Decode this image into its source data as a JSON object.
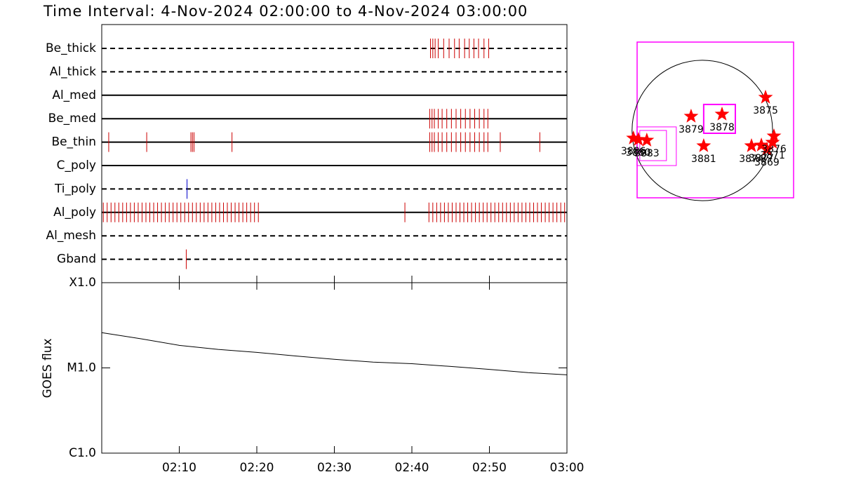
{
  "chart_data": [
    {
      "type": "event",
      "title": "Time Interval:  4-Nov-2024 02:00:00 to  4-Nov-2024 03:00:00",
      "xlim": [
        0,
        60
      ],
      "series": [
        {
          "name": "Be_thick",
          "color": "#cc0000",
          "style": "dashed",
          "values": [
            42.4,
            42.7,
            43.0,
            43.4,
            44.1,
            44.8,
            45.5,
            46.1,
            46.8,
            47.4,
            48.0,
            48.6,
            49.3,
            49.9
          ]
        },
        {
          "name": "Al_thick",
          "color": "#cc0000",
          "style": "dashed",
          "values": []
        },
        {
          "name": "Al_med",
          "color": "#cc0000",
          "style": "solid",
          "values": []
        },
        {
          "name": "Be_med",
          "color": "#cc0000",
          "style": "solid",
          "values": [
            42.3,
            42.6,
            42.9,
            43.4,
            43.9,
            44.5,
            45.1,
            45.7,
            46.3,
            46.9,
            47.5,
            48.1,
            48.7,
            49.3,
            49.8
          ]
        },
        {
          "name": "Be_thin",
          "color": "#cc0000",
          "style": "solid",
          "values": [
            0.9,
            5.8,
            11.5,
            11.7,
            11.9,
            16.8,
            42.3,
            42.6,
            42.9,
            43.4,
            43.9,
            44.5,
            45.1,
            45.7,
            46.3,
            46.9,
            47.5,
            48.1,
            48.7,
            49.3,
            49.8,
            51.4,
            56.5
          ]
        },
        {
          "name": "C_poly",
          "color": "#cc0000",
          "style": "solid",
          "values": []
        },
        {
          "name": "Ti_poly",
          "color": "#0000cc",
          "style": "dashed",
          "values": [
            11.0
          ]
        },
        {
          "name": "Al_poly",
          "color": "#cc0000",
          "style": "solid",
          "values": [
            0.2,
            0.7,
            1.2,
            1.7,
            2.2,
            2.7,
            3.2,
            3.7,
            4.2,
            4.7,
            5.2,
            5.7,
            6.2,
            6.7,
            7.2,
            7.7,
            8.2,
            8.7,
            9.2,
            9.7,
            10.2,
            10.7,
            11.2,
            11.7,
            12.2,
            12.7,
            13.2,
            13.7,
            14.2,
            14.7,
            15.2,
            15.7,
            16.2,
            16.7,
            17.2,
            17.7,
            18.2,
            18.7,
            19.2,
            19.7,
            20.2,
            39.1,
            42.2,
            42.7,
            43.2,
            43.7,
            44.2,
            44.7,
            45.2,
            45.7,
            46.2,
            46.7,
            47.2,
            47.7,
            48.2,
            48.7,
            49.2,
            49.7,
            50.2,
            50.7,
            51.2,
            51.7,
            52.2,
            52.7,
            53.2,
            53.7,
            54.2,
            54.7,
            55.2,
            55.7,
            56.2,
            56.7,
            57.2,
            57.7,
            58.2,
            58.7,
            59.2,
            59.7
          ]
        },
        {
          "name": "Al_mesh",
          "color": "#cc0000",
          "style": "dashed",
          "values": []
        },
        {
          "name": "Gband",
          "color": "#cc0000",
          "style": "dashed",
          "values": [
            10.9
          ]
        }
      ]
    },
    {
      "type": "line",
      "ylabel": "GOES flux",
      "ylog": true,
      "color": "#000000",
      "x": [
        0,
        5,
        10,
        15,
        20,
        25,
        30,
        35,
        40,
        45,
        50,
        55,
        60
      ],
      "values": [
        2.59e-05,
        2.2e-05,
        1.84e-05,
        1.65e-05,
        1.52e-05,
        1.38e-05,
        1.26e-05,
        1.17e-05,
        1.12e-05,
        1.04e-05,
        9.6e-06,
        8.8e-06,
        8.3e-06
      ],
      "xlim": [
        0,
        60
      ],
      "xticks": [
        {
          "value": 10,
          "label": "02:10"
        },
        {
          "value": 20,
          "label": "02:20"
        },
        {
          "value": 30,
          "label": "02:30"
        },
        {
          "value": 40,
          "label": "02:40"
        },
        {
          "value": 50,
          "label": "02:50"
        },
        {
          "value": 60,
          "label": "03:00"
        }
      ],
      "ylim": [
        1e-06,
        0.0001
      ],
      "yticks": [
        {
          "value": 1e-06,
          "label": "C1.0"
        },
        {
          "value": 1e-05,
          "label": "M1.0"
        },
        {
          "value": 0.0001,
          "label": "X1.0"
        }
      ]
    },
    {
      "type": "scatter",
      "color": "#ff0000",
      "box_color": "#ff00ff",
      "xlim": [
        -900,
        1260
      ],
      "ylim": [
        -930,
        1220
      ],
      "sun_radius": 970,
      "boxes": [
        [
          19,
          456,
          -39,
          359
        ],
        [
          -902,
          -359,
          -485,
          49
        ],
        [
          -863,
          -495,
          -417,
          0
        ]
      ],
      "labels": [
        "3875",
        "3879",
        "3878",
        "3881",
        "3886",
        "3880",
        "3883",
        "3874",
        "3877",
        "3869",
        "3876",
        "3871"
      ],
      "x": [
        873,
        -155,
        272,
        19,
        -951,
        -883,
        -766,
        679,
        815,
        892,
        989,
        970
      ],
      "values": [
        456,
        194,
        223,
        -213,
        -107,
        -126,
        -136,
        -213,
        -204,
        -262,
        -78,
        -165
      ]
    }
  ]
}
